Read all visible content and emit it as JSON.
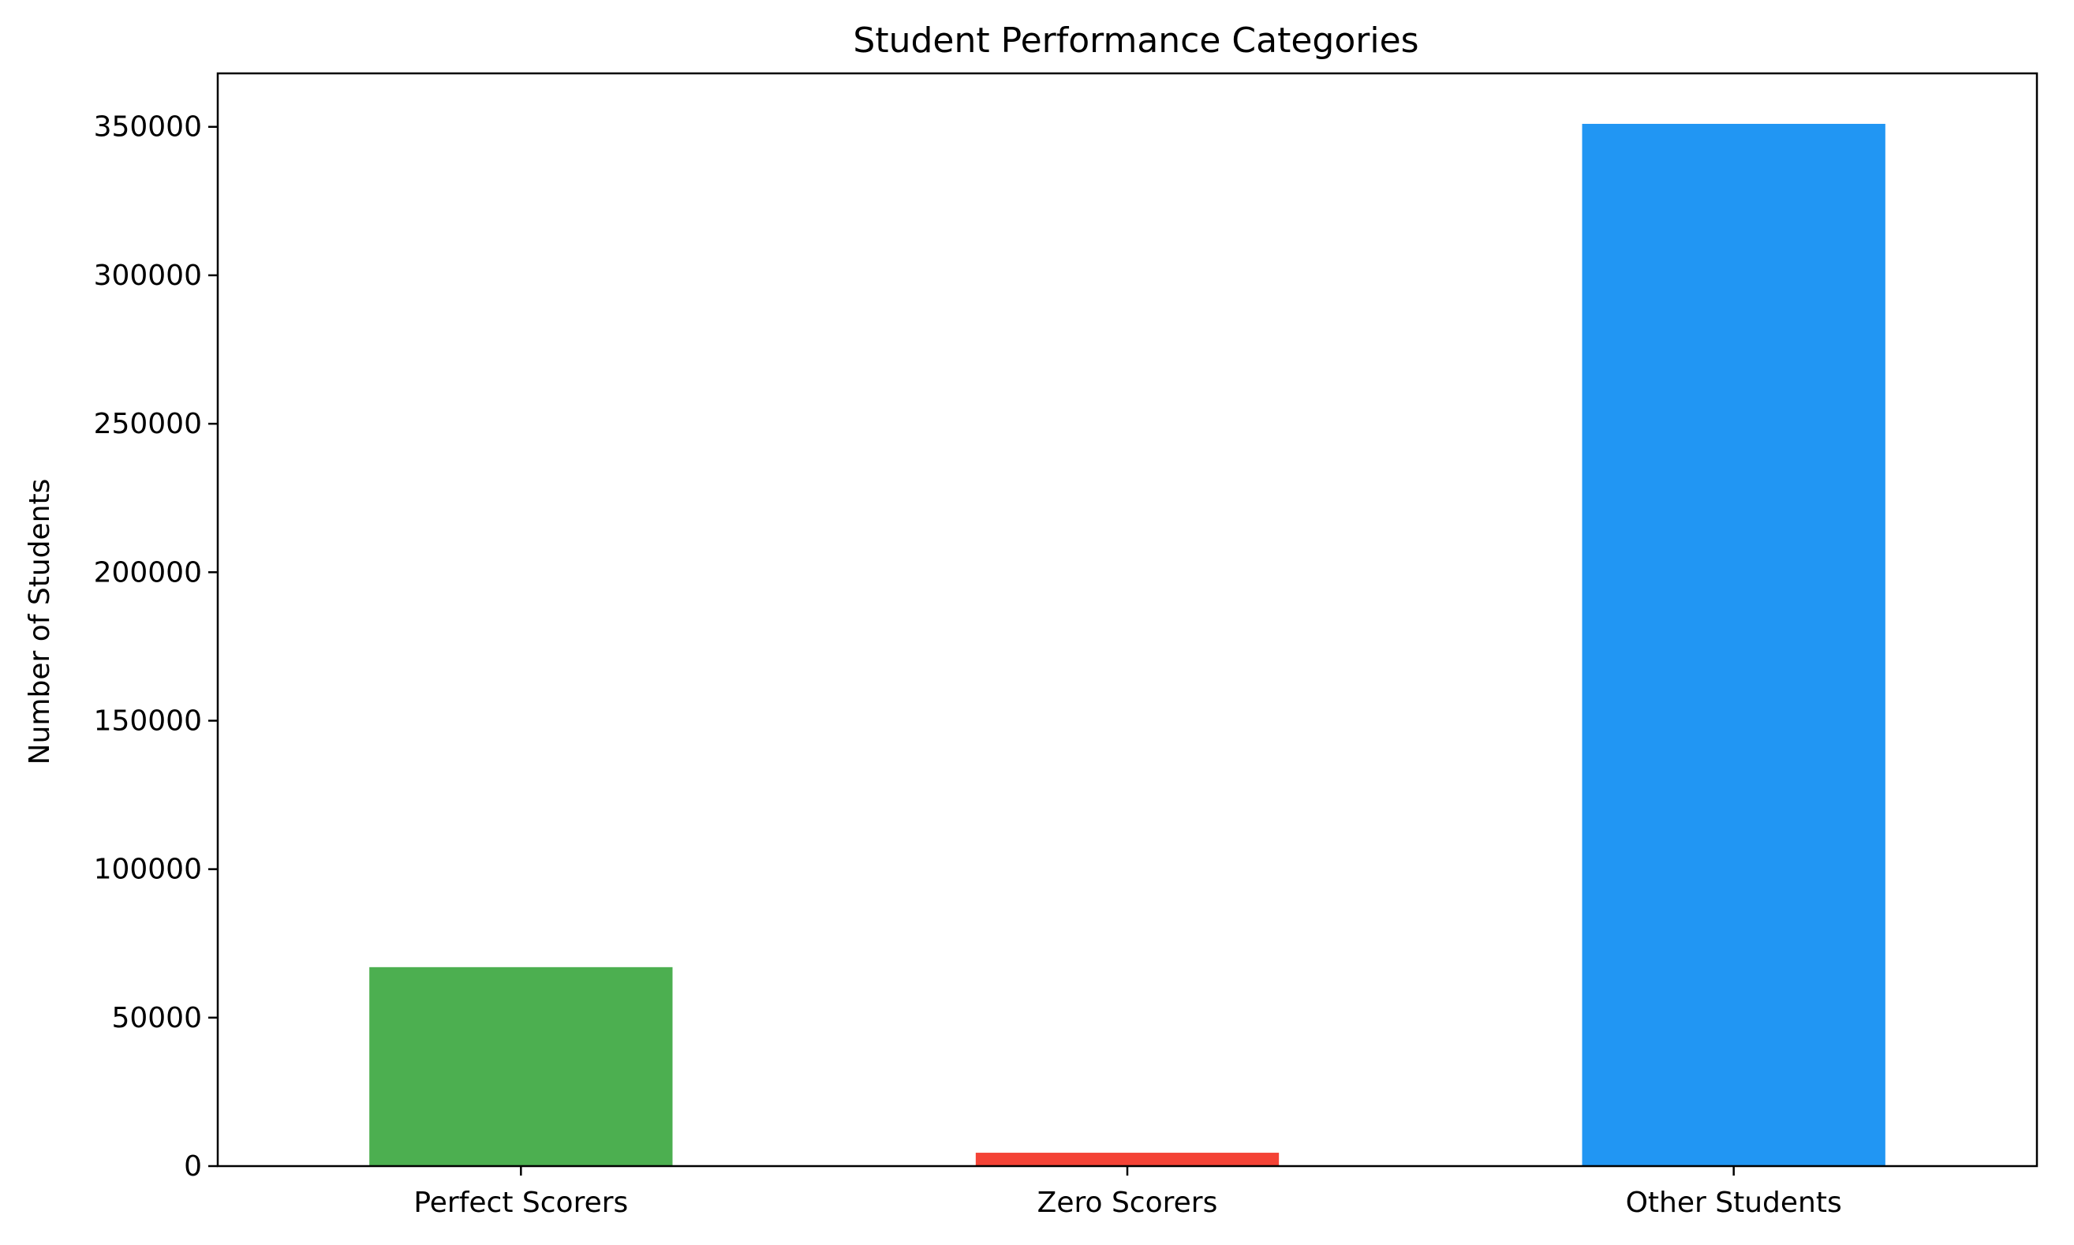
{
  "chart_data": {
    "type": "bar",
    "title": "Student Performance Categories",
    "xlabel": "",
    "ylabel": "Number of Students",
    "categories": [
      "Perfect Scorers",
      "Zero Scorers",
      "Other Students"
    ],
    "values": [
      67000,
      4500,
      351000
    ],
    "colors": [
      "#4caf50",
      "#f44336",
      "#2196f3"
    ],
    "ylim": [
      0,
      368000
    ],
    "yticks": [
      0,
      50000,
      100000,
      150000,
      200000,
      250000,
      300000,
      350000
    ],
    "ytick_labels": [
      "0",
      "50000",
      "100000",
      "150000",
      "200000",
      "250000",
      "300000",
      "350000"
    ],
    "grid": false,
    "legend": "none"
  }
}
